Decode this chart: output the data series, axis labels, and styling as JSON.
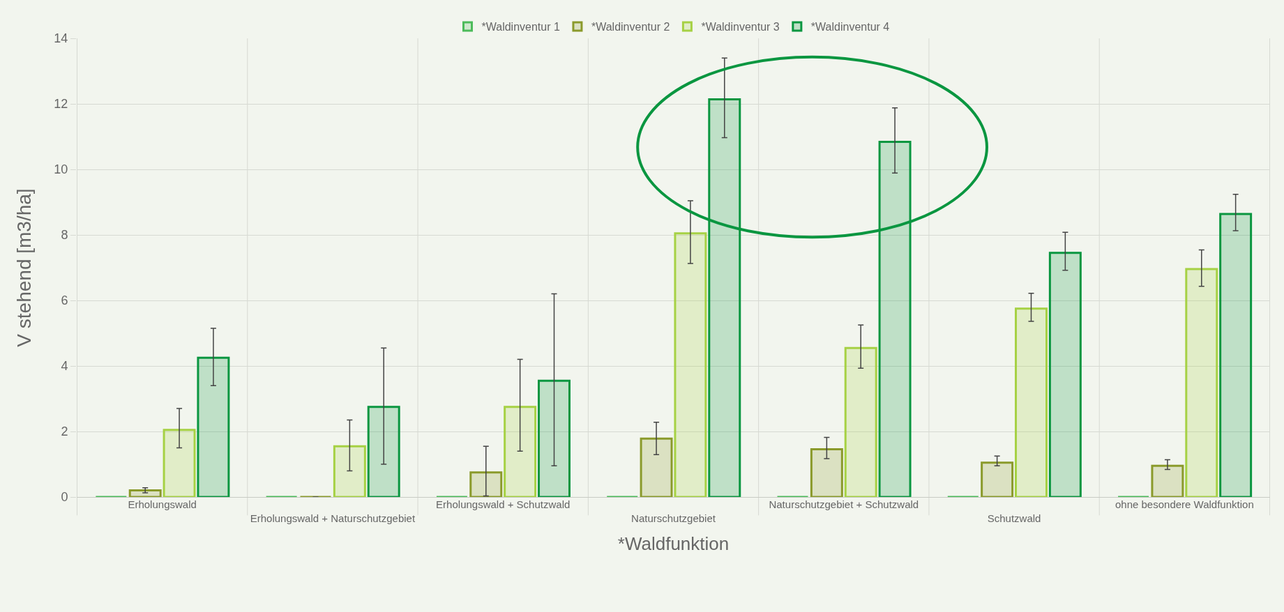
{
  "chart_data": {
    "type": "bar",
    "xlabel": "*Waldfunktion",
    "ylabel": "V stehend [m3/ha]",
    "categories": [
      "Erholungswald",
      "Erholungswald + Naturschutzgebiet",
      "Erholungswald + Schutzwald",
      "Naturschutzgebiet",
      "Naturschutzgebiet + Schutzwald",
      "Schutzwald",
      "ohne besondere Waldfunktion"
    ],
    "series": [
      {
        "name": "*Waldinventur 1",
        "color": "#4cbb5a",
        "values": [
          0,
          0,
          0,
          0,
          0,
          0,
          0
        ]
      },
      {
        "name": "*Waldinventur 2",
        "color": "#8a9a2b",
        "values": [
          0.2,
          0,
          0.75,
          1.78,
          1.46,
          1.05,
          0.95
        ],
        "errors": [
          [
            0.13,
            0.28
          ],
          null,
          [
            0.03,
            1.55
          ],
          [
            1.29,
            2.28
          ],
          [
            1.17,
            1.82
          ],
          [
            0.95,
            1.25
          ],
          [
            0.84,
            1.14
          ]
        ]
      },
      {
        "name": "*Waldinventur 3",
        "color": "#a6d144",
        "values": [
          2.05,
          1.55,
          2.75,
          8.05,
          4.55,
          5.75,
          6.96
        ],
        "errors": [
          [
            1.5,
            2.7
          ],
          [
            0.8,
            2.35
          ],
          [
            1.4,
            4.2
          ],
          [
            7.13,
            9.04
          ],
          [
            3.93,
            5.25
          ],
          [
            5.36,
            6.22
          ],
          [
            6.43,
            7.54
          ]
        ]
      },
      {
        "name": "*Waldinventur 4",
        "color": "#0a9640",
        "values": [
          4.25,
          2.75,
          3.55,
          12.14,
          10.84,
          7.45,
          8.64
        ],
        "errors": [
          [
            3.4,
            5.15
          ],
          [
            1.0,
            4.55
          ],
          [
            0.95,
            6.2
          ],
          [
            10.97,
            13.4
          ],
          [
            9.89,
            11.88
          ],
          [
            6.92,
            8.08
          ],
          [
            8.13,
            9.24
          ]
        ]
      }
    ],
    "ylim": [
      0,
      14
    ],
    "yticks": [
      0,
      2,
      4,
      6,
      8,
      10,
      12,
      14
    ],
    "grid": true,
    "legend": "top"
  }
}
